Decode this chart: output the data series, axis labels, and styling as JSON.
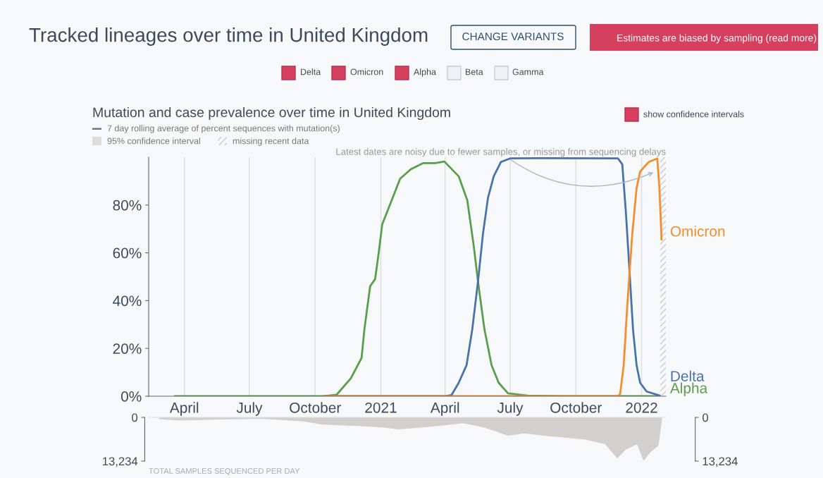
{
  "chart_data": [
    {
      "type": "line",
      "title": "Mutation and case prevalence over time in United Kingdom",
      "annotations": [
        "Tracked lineages over time in United Kingdom",
        "CHANGE VARIANTS",
        "Estimates are biased by sampling (read more)",
        "Delta",
        "Omicron",
        "Alpha",
        "Beta",
        "Gamma",
        "show confidence intervals",
        "7 day rolling average of percent sequences with mutation(s)",
        "95% confidence interval",
        {
          "text": "Latest dates are noisy due to fewer samples, or missing from sequencing delays",
          "x": "2022-01-20",
          "y": 94
        }
      ],
      "xlim": [
        "2020-02-11",
        "2022-02-04"
      ],
      "xticks": [
        {
          "value": "2020-04-01",
          "label": "April"
        },
        {
          "value": "2020-07-01",
          "label": "July"
        },
        {
          "value": "2020-10-01",
          "label": "October"
        },
        {
          "value": "2021-01-01",
          "label": "2021"
        },
        {
          "value": "2021-04-01",
          "label": "April"
        },
        {
          "value": "2021-07-01",
          "label": "July"
        },
        {
          "value": "2021-10-01",
          "label": "October"
        },
        {
          "value": "2022-01-01",
          "label": "2022"
        }
      ],
      "ylim": [
        0,
        100
      ],
      "yticks": [
        {
          "value": 0,
          "label": "0%"
        },
        {
          "value": 20,
          "label": "20%"
        },
        {
          "value": 40,
          "label": "40%"
        },
        {
          "value": 60,
          "label": "60%"
        },
        {
          "value": 80,
          "label": "80%"
        }
      ],
      "grid": "x",
      "bands": [
        {
          "axis": "x",
          "from": "2022-01-27",
          "to": "2022-02-04",
          "label": "missing recent data",
          "color": "#cccccc"
        }
      ],
      "series": [
        {
          "name": "Alpha",
          "color": "#5a9e4b",
          "x": [
            "2020-03-19",
            "2020-10-14",
            "2020-10-31",
            "2020-11-20",
            "2020-12-05",
            "2020-12-09",
            "2020-12-17",
            "2020-12-24",
            "2020-12-29",
            "2021-01-03",
            "2021-01-11",
            "2021-01-28",
            "2021-02-12",
            "2021-03-01",
            "2021-03-18",
            "2021-03-31",
            "2021-04-20",
            "2021-05-02",
            "2021-05-11",
            "2021-05-17",
            "2021-05-26",
            "2021-06-05",
            "2021-06-15",
            "2021-06-28",
            "2021-07-27",
            "2021-09-14",
            "2022-01-26"
          ],
          "values": [
            0,
            0,
            0.6,
            7.5,
            16,
            28,
            46,
            49,
            60,
            72,
            78,
            91,
            95,
            97.5,
            97.5,
            98.2,
            92,
            82,
            63,
            48,
            28,
            13,
            5.6,
            1.2,
            0.2,
            0,
            0
          ]
        },
        {
          "name": "Delta",
          "color": "#4a72a8",
          "x": [
            "2020-10-14",
            "2021-03-31",
            "2021-04-10",
            "2021-04-20",
            "2021-05-01",
            "2021-05-09",
            "2021-05-17",
            "2021-05-24",
            "2021-05-31",
            "2021-06-08",
            "2021-06-18",
            "2021-07-01",
            "2021-08-13",
            "2021-11-29",
            "2021-12-05",
            "2021-12-10",
            "2021-12-15",
            "2021-12-20",
            "2021-12-25",
            "2021-12-30",
            "2022-01-08",
            "2022-01-24",
            "2022-01-26"
          ],
          "values": [
            0,
            0,
            0.5,
            5.6,
            13,
            28,
            48,
            68,
            83,
            92,
            98,
            99.5,
            99.6,
            99.5,
            97,
            77,
            53,
            28,
            13,
            5.6,
            2,
            0.5,
            0.3
          ]
        },
        {
          "name": "Omicron",
          "color": "#f28e2b",
          "x": [
            "2020-10-14",
            "2021-11-29",
            "2021-12-02",
            "2021-12-07",
            "2021-12-12",
            "2021-12-19",
            "2021-12-25",
            "2021-12-30",
            "2022-01-11",
            "2022-01-23",
            "2022-01-26",
            "2022-01-29"
          ],
          "values": [
            0,
            0,
            1,
            13,
            38,
            68,
            87,
            94,
            98,
            99.5,
            87,
            65.6
          ]
        }
      ]
    },
    {
      "type": "area",
      "xlabel": "TOTAL SAMPLES SEQUENCED PER DAY",
      "tick_labels": "y",
      "xlim": [
        "2020-02-11",
        "2022-02-04"
      ],
      "ylim": [
        13234,
        0
      ],
      "yticks": [
        {
          "value": 0,
          "label": "0"
        },
        {
          "value": 13234,
          "label": "13,234"
        }
      ],
      "y2lim": [
        13234,
        0
      ],
      "y2ticks": [
        {
          "value": 0,
          "label": "0"
        },
        {
          "value": 13234,
          "label": "13,234"
        }
      ],
      "series": [
        {
          "color": "#d3cfcc",
          "x": [
            "2020-02-26",
            "2020-03-26",
            "2020-05-21",
            "2020-07-17",
            "2020-09-12",
            "2020-10-10",
            "2020-11-08",
            "2020-12-06",
            "2021-01-03",
            "2021-01-26",
            "2021-03-01",
            "2021-03-29",
            "2021-04-26",
            "2021-05-25",
            "2021-06-11",
            "2021-06-28",
            "2021-07-20",
            "2021-08-18",
            "2021-09-15",
            "2021-10-14",
            "2021-11-11",
            "2021-11-28",
            "2021-12-09",
            "2021-12-26",
            "2022-01-04",
            "2022-01-13",
            "2022-01-24",
            "2022-01-29"
          ],
          "values": [
            400,
            800,
            500,
            300,
            1000,
            2000,
            2300,
            2500,
            2900,
            3500,
            2900,
            2300,
            1600,
            2900,
            4100,
            5400,
            4700,
            5400,
            6000,
            6600,
            7900,
            12200,
            9700,
            7900,
            12900,
            10400,
            8500,
            400
          ]
        }
      ]
    }
  ]
}
